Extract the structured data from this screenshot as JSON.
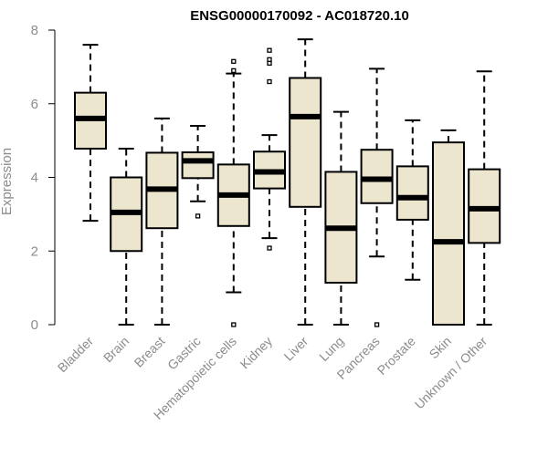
{
  "chart_data": {
    "type": "boxplot",
    "title": "ENSG00000170092 - AC018720.10",
    "xlabel": "",
    "ylabel": "Expression",
    "ylim": [
      0,
      8
    ],
    "yticks": [
      0,
      2,
      4,
      6,
      8
    ],
    "grid": false,
    "colors": {
      "box_fill": "#ede6cf",
      "stroke": "#000000",
      "axis_text": "#8c8c8c"
    },
    "categories": [
      "Bladder",
      "Brain",
      "Breast",
      "Gastric",
      "Hematopoietic cells",
      "Kidney",
      "Liver",
      "Lung",
      "Pancreas",
      "Prostate",
      "Skin",
      "Unknown / Other"
    ],
    "boxes": [
      {
        "name": "Bladder",
        "whisker_low": 2.82,
        "q1": 4.78,
        "median": 5.6,
        "q3": 6.3,
        "whisker_high": 7.6,
        "outliers": []
      },
      {
        "name": "Brain",
        "whisker_low": 0.0,
        "q1": 2.0,
        "median": 3.05,
        "q3": 4.0,
        "whisker_high": 4.78,
        "outliers": []
      },
      {
        "name": "Breast",
        "whisker_low": 0.0,
        "q1": 2.62,
        "median": 3.68,
        "q3": 4.67,
        "whisker_high": 5.6,
        "outliers": []
      },
      {
        "name": "Gastric",
        "whisker_low": 3.35,
        "q1": 3.98,
        "median": 4.45,
        "q3": 4.68,
        "whisker_high": 5.4,
        "outliers": [
          2.95
        ]
      },
      {
        "name": "Hematopoietic cells",
        "whisker_low": 0.88,
        "q1": 2.68,
        "median": 3.52,
        "q3": 4.35,
        "whisker_high": 6.82,
        "outliers": [
          0.0,
          6.9,
          7.15
        ]
      },
      {
        "name": "Kidney",
        "whisker_low": 2.35,
        "q1": 3.7,
        "median": 4.15,
        "q3": 4.7,
        "whisker_high": 5.15,
        "outliers": [
          2.08,
          6.6,
          7.1,
          7.2,
          7.45
        ]
      },
      {
        "name": "Liver",
        "whisker_low": 0.0,
        "q1": 3.2,
        "median": 5.65,
        "q3": 6.7,
        "whisker_high": 7.75,
        "outliers": []
      },
      {
        "name": "Lung",
        "whisker_low": 0.0,
        "q1": 1.14,
        "median": 2.62,
        "q3": 4.15,
        "whisker_high": 5.78,
        "outliers": []
      },
      {
        "name": "Pancreas",
        "whisker_low": 1.85,
        "q1": 3.3,
        "median": 3.95,
        "q3": 4.75,
        "whisker_high": 6.95,
        "outliers": [
          0.0
        ]
      },
      {
        "name": "Prostate",
        "whisker_low": 1.22,
        "q1": 2.85,
        "median": 3.45,
        "q3": 4.3,
        "whisker_high": 5.55,
        "outliers": []
      },
      {
        "name": "Skin",
        "whisker_low": 0.0,
        "q1": 0.0,
        "median": 2.25,
        "q3": 4.95,
        "whisker_high": 5.28,
        "outliers": []
      },
      {
        "name": "Unknown / Other",
        "whisker_low": 0.0,
        "q1": 2.22,
        "median": 3.15,
        "q3": 4.22,
        "whisker_high": 6.88,
        "outliers": []
      }
    ]
  }
}
